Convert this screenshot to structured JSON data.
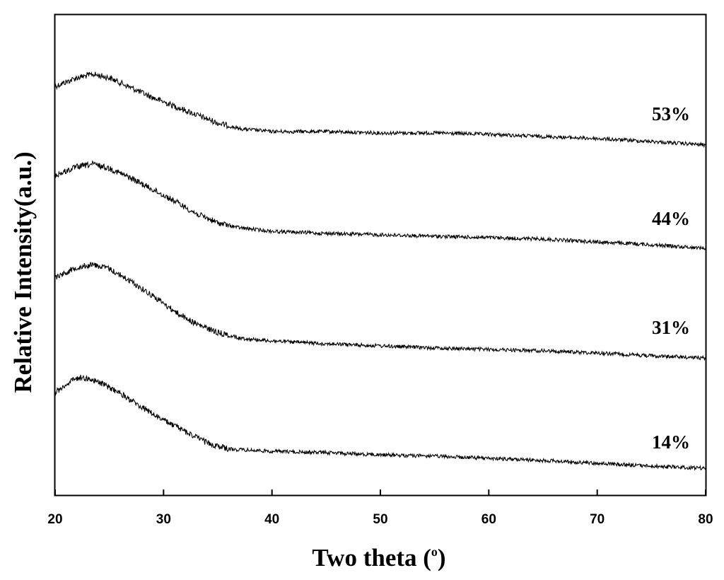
{
  "chart_data": {
    "type": "line",
    "title": "",
    "xlabel": "Two theta (",
    "xlabel_superscript": "o",
    "xlabel_suffix": ")",
    "ylabel": "Relative Intensity(a.u.)",
    "xlim": [
      20,
      80
    ],
    "x_ticks": [
      20,
      30,
      40,
      50,
      60,
      70,
      80
    ],
    "y_ticks_shown": false,
    "grid": false,
    "legend": "none",
    "series_color": "#000000",
    "series": [
      {
        "name": "53%",
        "x": [
          20,
          22,
          23.5,
          25,
          27,
          29,
          31,
          33,
          35,
          37,
          40,
          45,
          50,
          55,
          60,
          65,
          70,
          75,
          80
        ],
        "raw": [
          122,
          110,
          105,
          110,
          124,
          138,
          150,
          162,
          174,
          182,
          186,
          186,
          188,
          188,
          190,
          193,
          196,
          200,
          205
        ]
      },
      {
        "name": "44%",
        "x": [
          20,
          22,
          23.5,
          25,
          27,
          29,
          31,
          33,
          35,
          37,
          40,
          45,
          50,
          55,
          60,
          65,
          70,
          75,
          80
        ],
        "raw": [
          248,
          236,
          232,
          238,
          252,
          268,
          284,
          302,
          315,
          322,
          327,
          330,
          332,
          334,
          336,
          338,
          342,
          346,
          351
        ]
      },
      {
        "name": "31%",
        "x": [
          20,
          22,
          23.5,
          25,
          27,
          29,
          31,
          33,
          35,
          37,
          40,
          45,
          50,
          55,
          60,
          65,
          70,
          75,
          80
        ],
        "raw": [
          392,
          378,
          374,
          380,
          398,
          418,
          440,
          458,
          470,
          478,
          482,
          486,
          489,
          492,
          494,
          496,
          499,
          503,
          506
        ]
      },
      {
        "name": "14%",
        "x": [
          20,
          21.5,
          22.5,
          24,
          26,
          28,
          30,
          32,
          34,
          36,
          40,
          45,
          50,
          55,
          60,
          65,
          70,
          75,
          80
        ],
        "raw": [
          555,
          538,
          533,
          540,
          556,
          576,
          594,
          610,
          626,
          635,
          638,
          640,
          643,
          645,
          648,
          651,
          655,
          659,
          662
        ]
      }
    ]
  }
}
